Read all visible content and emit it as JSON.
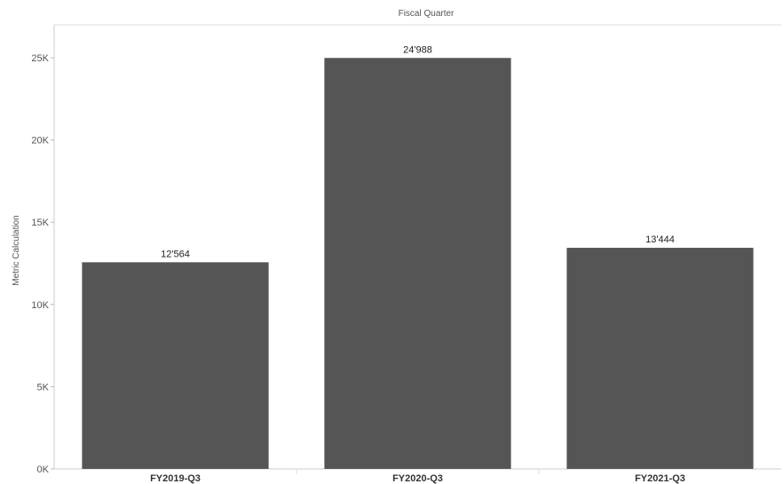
{
  "chart_data": {
    "type": "bar",
    "title": "",
    "header_label": "Fiscal Quarter",
    "xlabel": "",
    "ylabel": "Metric Calculation",
    "categories": [
      "FY2019-Q3",
      "FY2020-Q3",
      "FY2021-Q3"
    ],
    "values": [
      12564,
      24988,
      13444
    ],
    "data_labels": [
      "12'564",
      "24'988",
      "13'444"
    ],
    "ylim": [
      0,
      27000
    ],
    "yticks": [
      0,
      5000,
      10000,
      15000,
      20000,
      25000
    ],
    "ytick_labels": [
      "0K",
      "5K",
      "10K",
      "15K",
      "20K",
      "25K"
    ],
    "grid": false,
    "legend": "none",
    "bar_color": "#555555"
  }
}
